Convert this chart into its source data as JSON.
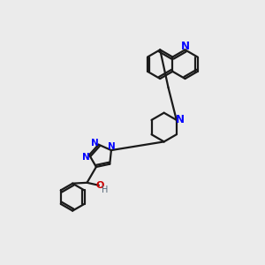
{
  "bg_color": "#ebebeb",
  "bond_color": "#1a1a1a",
  "nitrogen_color": "#0000ff",
  "oxygen_color": "#cc0000",
  "h_color": "#556677",
  "line_width": 1.6,
  "figsize": [
    3.0,
    3.0
  ],
  "dpi": 100,
  "xlim": [
    0,
    10
  ],
  "ylim": [
    0,
    10
  ]
}
